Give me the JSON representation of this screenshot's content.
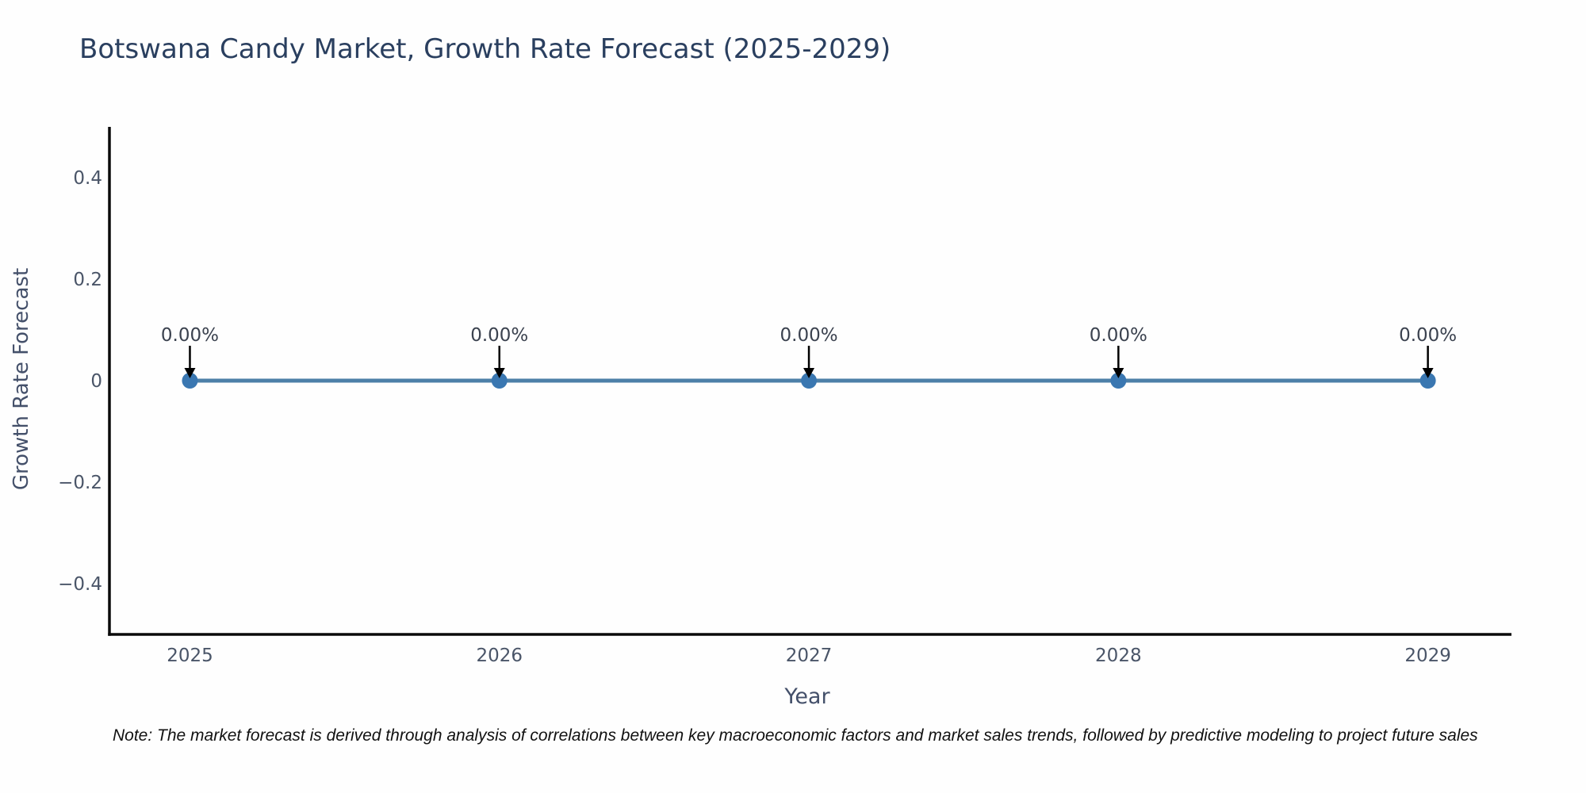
{
  "title": "Botswana Candy Market, Growth Rate Forecast (2025-2029)",
  "note": "Note: The market forecast is derived through analysis of correlations between key macroeconomic factors and market sales trends, followed by predictive modeling to project future sales",
  "chart_data": {
    "type": "line",
    "title": "Botswana Candy Market, Growth Rate Forecast (2025-2029)",
    "xlabel": "Year",
    "ylabel": "Growth Rate Forecast",
    "x": [
      2025,
      2026,
      2027,
      2028,
      2029
    ],
    "series": [
      {
        "name": "Growth Rate Forecast",
        "values": [
          0,
          0,
          0,
          0,
          0
        ]
      }
    ],
    "point_labels": [
      "0.00%",
      "0.00%",
      "0.00%",
      "0.00%",
      "0.00%"
    ],
    "xtick_labels": [
      "2025",
      "2026",
      "2027",
      "2028",
      "2029"
    ],
    "yticks": [
      0.4,
      0.2,
      0,
      -0.2,
      -0.4
    ],
    "ytick_labels": [
      "0.4",
      "0.2",
      "0",
      "−0.2",
      "−0.4"
    ],
    "ylim": [
      -0.5,
      0.5
    ],
    "xlim": [
      2024.74,
      2029.27
    ],
    "grid": false,
    "legend": "none",
    "annotation_arrows": "down-to-point",
    "colors": {
      "line": "#4d80a8",
      "marker": "#3a77b1",
      "arrow": "#000000",
      "spine": "#0a0a0a",
      "title": "#2a3f5f",
      "tick": "#4a5568",
      "axis_label": "#44506a",
      "annotation": "#3b424f",
      "note": "#111111",
      "background": "#fefefe"
    }
  }
}
